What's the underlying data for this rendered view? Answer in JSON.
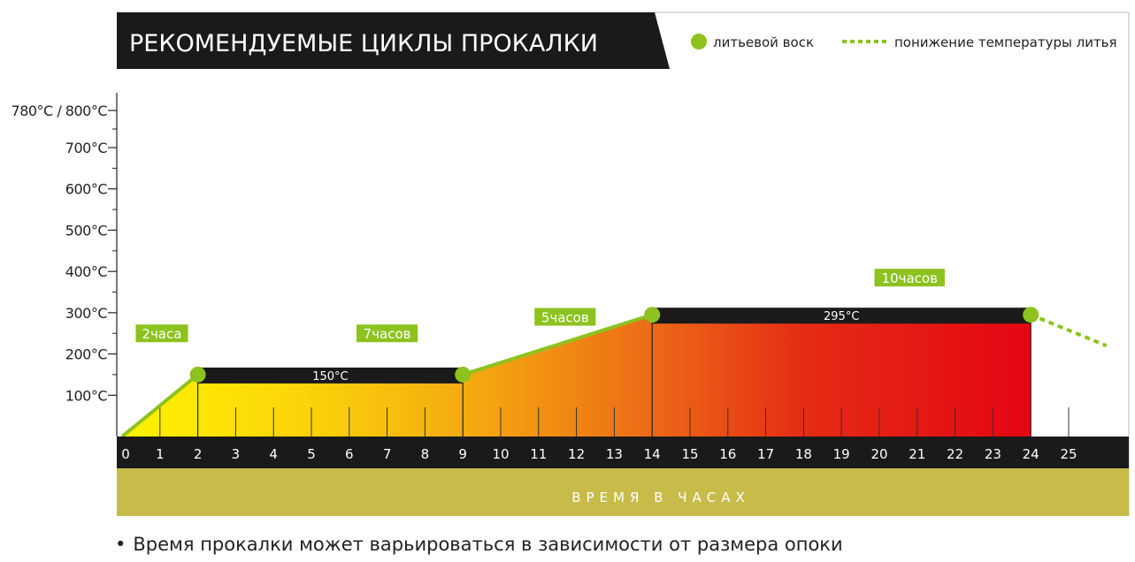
{
  "chart_data": {
    "type": "area",
    "title": "РЕКОМЕНДУЕМЫЕ ЦИКЛЫ ПРОКАЛКИ",
    "xlabel": "ВРЕМЯ В ЧАСАХ",
    "ylabel": "",
    "x_ticks": [
      "0",
      "1",
      "2",
      "3",
      "4",
      "5",
      "6",
      "7",
      "8",
      "9",
      "10",
      "11",
      "12",
      "13",
      "14",
      "15",
      "16",
      "17",
      "18",
      "19",
      "20",
      "21",
      "22",
      "23",
      "24",
      "25"
    ],
    "y_ticks": [
      {
        "value": 100,
        "label": "100°C"
      },
      {
        "value": 200,
        "label": "200°C"
      },
      {
        "value": 300,
        "label": "300°C"
      },
      {
        "value": 400,
        "label": "400°C"
      },
      {
        "value": 500,
        "label": "500°C"
      },
      {
        "value": 600,
        "label": "600°C"
      },
      {
        "value": 700,
        "label": "700°C"
      },
      {
        "value": 790,
        "label": "780°C / 800°C"
      }
    ],
    "xlim": [
      0,
      26
    ],
    "ylim": [
      0,
      790
    ],
    "legend": {
      "placement": "top-right",
      "entries": [
        {
          "label": "литьевой воск",
          "marker": "dot"
        },
        {
          "label": "понижение температуры литья",
          "marker": "dashed-line"
        }
      ]
    },
    "series": [
      {
        "name": "литьевой воск",
        "x": [
          0,
          2,
          9,
          14,
          24
        ],
        "y": [
          0,
          150,
          150,
          295,
          295
        ]
      }
    ],
    "cooldown": {
      "x": [
        24,
        26
      ],
      "y": [
        295,
        220
      ]
    },
    "holds": [
      {
        "x_start": 2,
        "x_end": 9,
        "temp": 150,
        "label": "150°C"
      },
      {
        "x_start": 14,
        "x_end": 24,
        "temp": 295,
        "label": "295°C"
      }
    ],
    "duration_labels": [
      {
        "x": 1.05,
        "y": 250,
        "label": "2часа"
      },
      {
        "x": 7.0,
        "y": 250,
        "label": "7часов"
      },
      {
        "x": 11.7,
        "y": 290,
        "label": "5часов"
      },
      {
        "x": 20.8,
        "y": 385,
        "label": "10часов"
      }
    ],
    "colors": {
      "accent": "#8dc21f",
      "bar": "#1a1a1a",
      "axis_band": "#c7bb4a",
      "gradient_start": "#fff200",
      "gradient_mid": "#f28c0f",
      "gradient_end": "#e30613"
    }
  },
  "footnote": "Время прокалки может варьироваться в зависимости от размера опоки"
}
